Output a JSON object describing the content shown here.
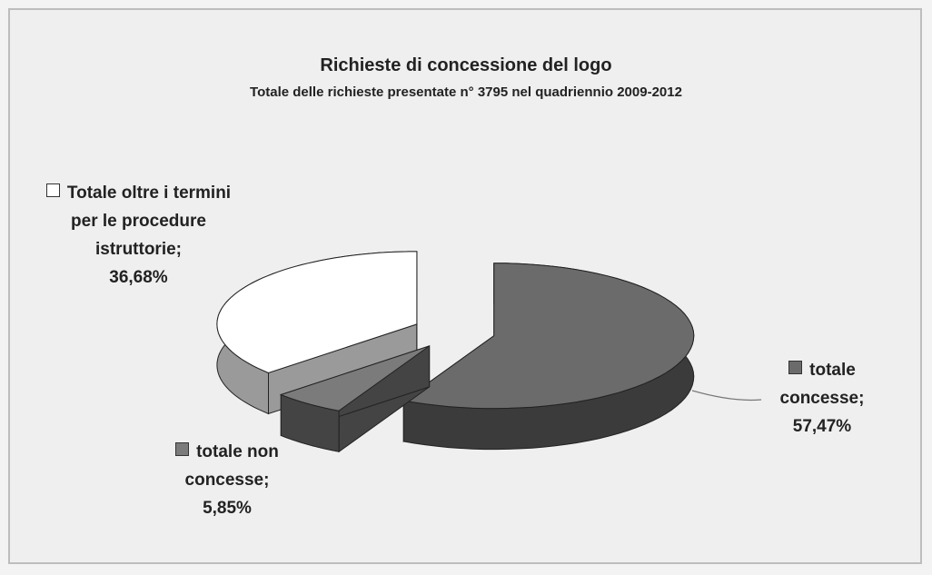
{
  "chart_data": {
    "type": "pie3d",
    "title": "Richieste di concessione del logo",
    "subtitle": "Totale  delle richieste presentate n° 3795 nel quadriennio 2009-2012",
    "categories": [
      "totale concesse;",
      "totale non concesse;",
      "Totale oltre i termini per le procedure istruttorie;"
    ],
    "values": [
      57.47,
      5.85,
      36.68
    ],
    "value_labels": [
      "57,47%",
      "5,85%",
      "36,68%"
    ],
    "colors": [
      "#6b6b6b",
      "#7b7b7b",
      "#ffffff"
    ]
  }
}
